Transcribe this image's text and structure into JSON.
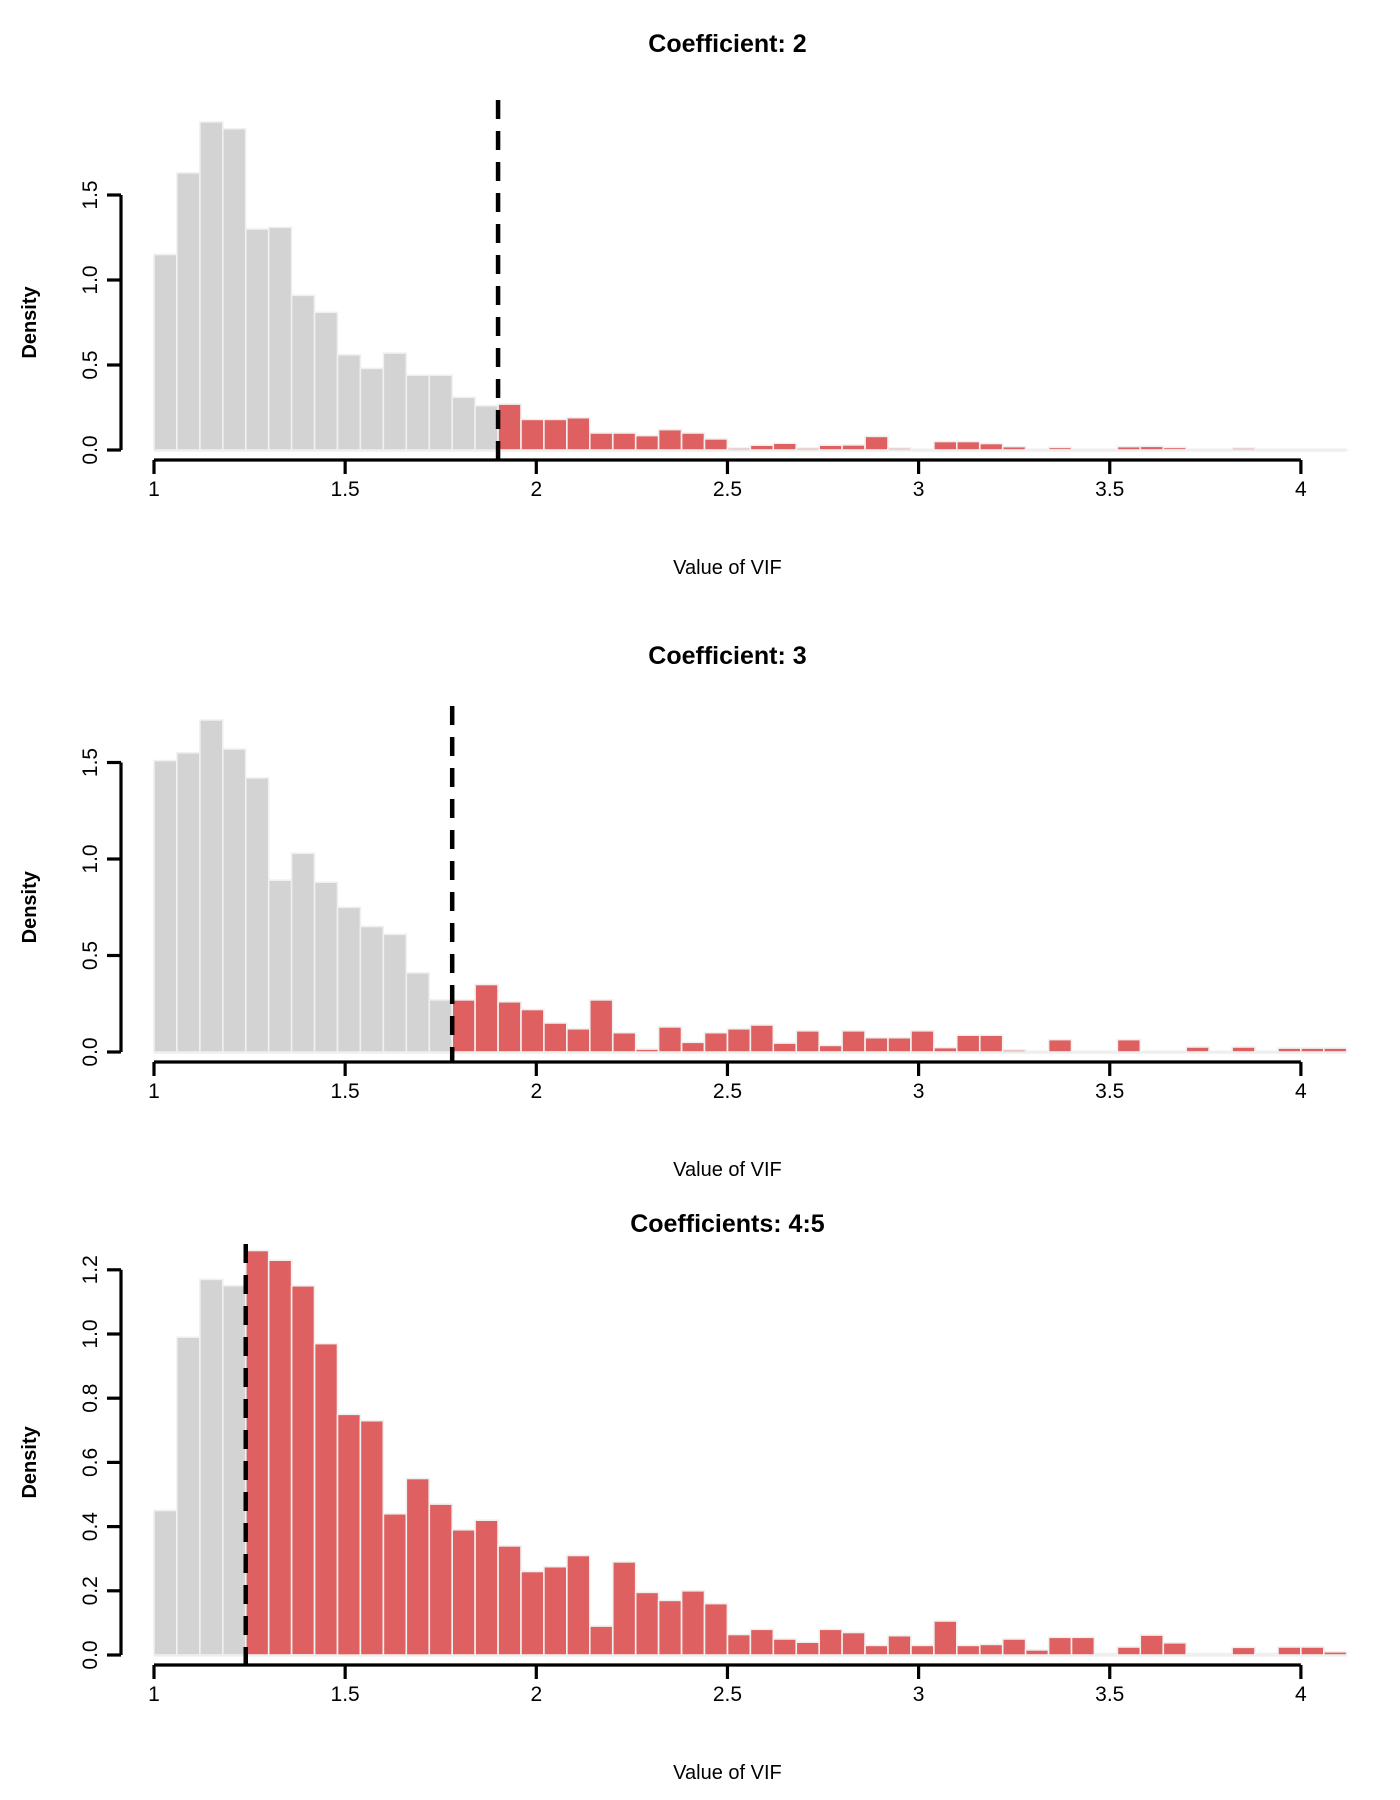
{
  "figure": {
    "background": "#ffffff",
    "description": "Three stacked histograms of VIF values, one per regression coefficient, with dashed vertical threshold line; bars below threshold gray, above threshold red"
  },
  "colors": {
    "below_threshold_fill": "#d3d3d3",
    "above_threshold_fill": "#df6060",
    "bar_border": "#f0f0f0",
    "dashed_line": "#000000",
    "axis": "#000000",
    "baseline": "#e7e7e7",
    "text": "#000000"
  },
  "chart_data": [
    {
      "type": "bar",
      "subtype": "histogram",
      "title": "Coefficient: 2",
      "xlabel": "Value of VIF",
      "ylabel": "Density",
      "xlim": [
        1,
        4.12
      ],
      "ylim": [
        0,
        2.06
      ],
      "x_tick_values": [
        1,
        1.5,
        2,
        2.5,
        3,
        3.5,
        4
      ],
      "x_tick_labels": [
        "1",
        "1.5",
        "2",
        "2.5",
        "3",
        "3.5",
        "4"
      ],
      "y_tick_values": [
        0,
        0.5,
        1.0,
        1.5
      ],
      "y_tick_labels": [
        "0.0",
        "0.5",
        "1.0",
        "1.5"
      ],
      "bin_start": 1.0,
      "bin_width": 0.06,
      "dashed_line_x": 1.9,
      "bins_below_threshold_count": 15,
      "heights": [
        1.15,
        1.63,
        1.93,
        1.89,
        1.3,
        1.31,
        0.91,
        0.81,
        0.56,
        0.48,
        0.57,
        0.44,
        0.44,
        0.31,
        0.26,
        0.27,
        0.18,
        0.18,
        0.19,
        0.1,
        0.1,
        0.085,
        0.12,
        0.1,
        0.065,
        0.012,
        0.028,
        0.04,
        0.012,
        0.028,
        0.03,
        0.08,
        0.012,
        0.003,
        0.05,
        0.05,
        0.038,
        0.02,
        0.003,
        0.015,
        0.003,
        0.003,
        0.02,
        0.022,
        0.015,
        0.003,
        0.003,
        0.012,
        0.003,
        0.003,
        0.003,
        0.003
      ],
      "grid": false,
      "legend": null
    },
    {
      "type": "bar",
      "subtype": "histogram",
      "title": "Coefficient: 3",
      "xlabel": "Value of VIF",
      "ylabel": "Density",
      "xlim": [
        1,
        4.12
      ],
      "ylim": [
        0,
        1.8
      ],
      "x_tick_values": [
        1,
        1.5,
        2,
        2.5,
        3,
        3.5,
        4
      ],
      "x_tick_labels": [
        "1",
        "1.5",
        "2",
        "2.5",
        "3",
        "3.5",
        "4"
      ],
      "y_tick_values": [
        0,
        0.5,
        1.0,
        1.5
      ],
      "y_tick_labels": [
        "0.0",
        "0.5",
        "1.0",
        "1.5"
      ],
      "bin_start": 1.0,
      "bin_width": 0.06,
      "dashed_line_x": 1.78,
      "bins_below_threshold_count": 13,
      "heights": [
        1.51,
        1.55,
        1.72,
        1.57,
        1.42,
        0.89,
        1.03,
        0.88,
        0.75,
        0.65,
        0.61,
        0.41,
        0.27,
        0.27,
        0.35,
        0.26,
        0.22,
        0.15,
        0.12,
        0.27,
        0.1,
        0.015,
        0.13,
        0.05,
        0.1,
        0.12,
        0.14,
        0.046,
        0.11,
        0.034,
        0.11,
        0.074,
        0.074,
        0.11,
        0.023,
        0.087,
        0.087,
        0.011,
        0.004,
        0.064,
        0.004,
        0.004,
        0.064,
        0.004,
        0.004,
        0.026,
        0.004,
        0.026,
        0.004,
        0.02,
        0.02,
        0.02
      ],
      "grid": false,
      "legend": null
    },
    {
      "type": "bar",
      "subtype": "histogram",
      "title": "Coefficients: 4:5",
      "xlabel": "Value of VIF",
      "ylabel": "Density",
      "xlim": [
        1,
        4.12
      ],
      "ylim": [
        0,
        1.28
      ],
      "x_tick_values": [
        1,
        1.5,
        2,
        2.5,
        3,
        3.5,
        4
      ],
      "x_tick_labels": [
        "1",
        "1.5",
        "2",
        "2.5",
        "3",
        "3.5",
        "4"
      ],
      "y_tick_values": [
        0,
        0.2,
        0.4,
        0.6,
        0.8,
        1.0,
        1.2
      ],
      "y_tick_labels": [
        "0.0",
        "0.2",
        "0.4",
        "0.6",
        "0.8",
        "1.0",
        "1.2"
      ],
      "bin_start": 1.0,
      "bin_width": 0.06,
      "dashed_line_x": 1.24,
      "bins_below_threshold_count": 4,
      "heights": [
        0.45,
        0.99,
        1.17,
        1.15,
        1.26,
        1.23,
        1.15,
        0.97,
        0.75,
        0.73,
        0.44,
        0.55,
        0.47,
        0.39,
        0.42,
        0.34,
        0.26,
        0.275,
        0.31,
        0.09,
        0.29,
        0.195,
        0.17,
        0.2,
        0.16,
        0.064,
        0.08,
        0.05,
        0.04,
        0.08,
        0.07,
        0.03,
        0.06,
        0.03,
        0.106,
        0.03,
        0.033,
        0.05,
        0.016,
        0.055,
        0.055,
        0.005,
        0.025,
        0.062,
        0.038,
        0.005,
        0.005,
        0.024,
        0.005,
        0.025,
        0.025,
        0.01
      ],
      "grid": false,
      "legend": null
    }
  ]
}
